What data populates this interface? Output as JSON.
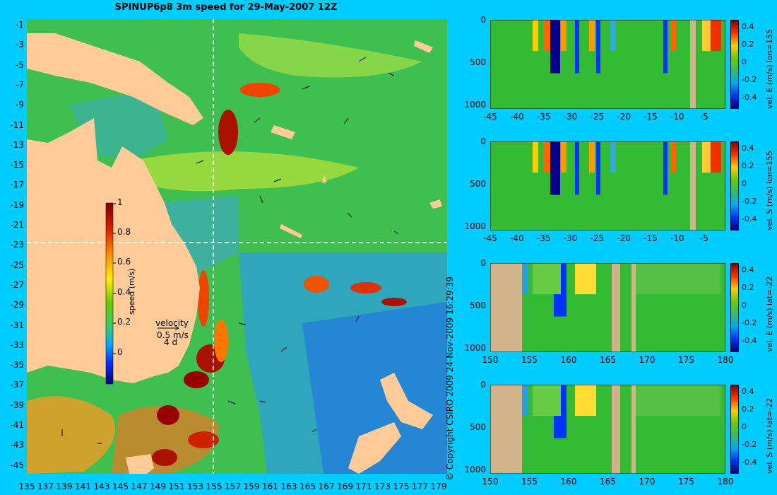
{
  "title": "SPINUP6p8 3m speed for 29-May-2007 12Z",
  "copyright": "© Copyright CSIRO 2009   24-Nov-2009 16:29:39",
  "map": {
    "lat_labels": [
      "-1",
      "-3",
      "-5",
      "-7",
      "-9",
      "-11",
      "-13",
      "-15",
      "-17",
      "-19",
      "-21",
      "-23",
      "-25",
      "-27",
      "-29",
      "-31",
      "-33",
      "-35",
      "-37",
      "-39",
      "-41",
      "-43",
      "-45"
    ],
    "lon_labels": [
      "135",
      "137",
      "139",
      "141",
      "143",
      "145",
      "147",
      "149",
      "151",
      "153",
      "155",
      "157",
      "159",
      "161",
      "163",
      "165",
      "167",
      "169",
      "171",
      "173",
      "175",
      "177",
      "179"
    ],
    "lat_range": [
      -0.5,
      -45
    ],
    "lon_range": [
      135,
      179.8
    ],
    "crosshair": {
      "lon": 155,
      "lat": -22
    },
    "colorbar": {
      "label": "speed (m/s)",
      "ticks": [
        "1",
        "0.8",
        "0.6",
        "0.4",
        "0.2",
        "0"
      ],
      "range": [
        -0.2,
        1
      ]
    },
    "velocity_key": {
      "title": "velocity",
      "speed": "0.5 m/s",
      "duration": "4 d"
    }
  },
  "panels": [
    {
      "id": "p1",
      "cbar_label": "vel. E (m/s) lon=155",
      "x_ticks": [
        "-45",
        "-40",
        "-35",
        "-30",
        "-25",
        "-20",
        "-15",
        "-10",
        "-5"
      ],
      "x_range": [
        -45,
        -1
      ],
      "y_ticks": [
        "0",
        "500",
        "1000"
      ],
      "cbar_ticks": [
        "0.4",
        "0.2",
        "0",
        "-0.2",
        "-0.4"
      ]
    },
    {
      "id": "p2",
      "cbar_label": "vel. S (m/s) lon=155",
      "x_ticks": [
        "-45",
        "-40",
        "-35",
        "-30",
        "-25",
        "-20",
        "-15",
        "-10",
        "-5"
      ],
      "x_range": [
        -45,
        -1
      ],
      "y_ticks": [
        "0",
        "500",
        "1000"
      ],
      "cbar_ticks": [
        "0.4",
        "0.2",
        "0",
        "-0.2",
        "-0.4"
      ]
    },
    {
      "id": "p3",
      "cbar_label": "vel. E (m/s) lat=-22",
      "x_ticks": [
        "150",
        "155",
        "160",
        "165",
        "170",
        "175",
        "180"
      ],
      "x_range": [
        150,
        180
      ],
      "y_ticks": [
        "0",
        "500",
        "1000"
      ],
      "cbar_ticks": [
        "0.4",
        "0.2",
        "0",
        "-0.2",
        "-0.4"
      ]
    },
    {
      "id": "p4",
      "cbar_label": "vel. S (m/s) lat=-22",
      "x_ticks": [
        "150",
        "155",
        "160",
        "165",
        "170",
        "175",
        "180"
      ],
      "x_range": [
        150,
        180
      ],
      "y_ticks": [
        "0",
        "500",
        "1000"
      ],
      "cbar_ticks": [
        "0.4",
        "0.2",
        "0",
        "-0.2",
        "-0.4"
      ]
    }
  ],
  "colors": {
    "background": "#00ccff",
    "land": "#ffcc99",
    "section_land": "#d2b48c",
    "ocean": "#33bb33"
  }
}
